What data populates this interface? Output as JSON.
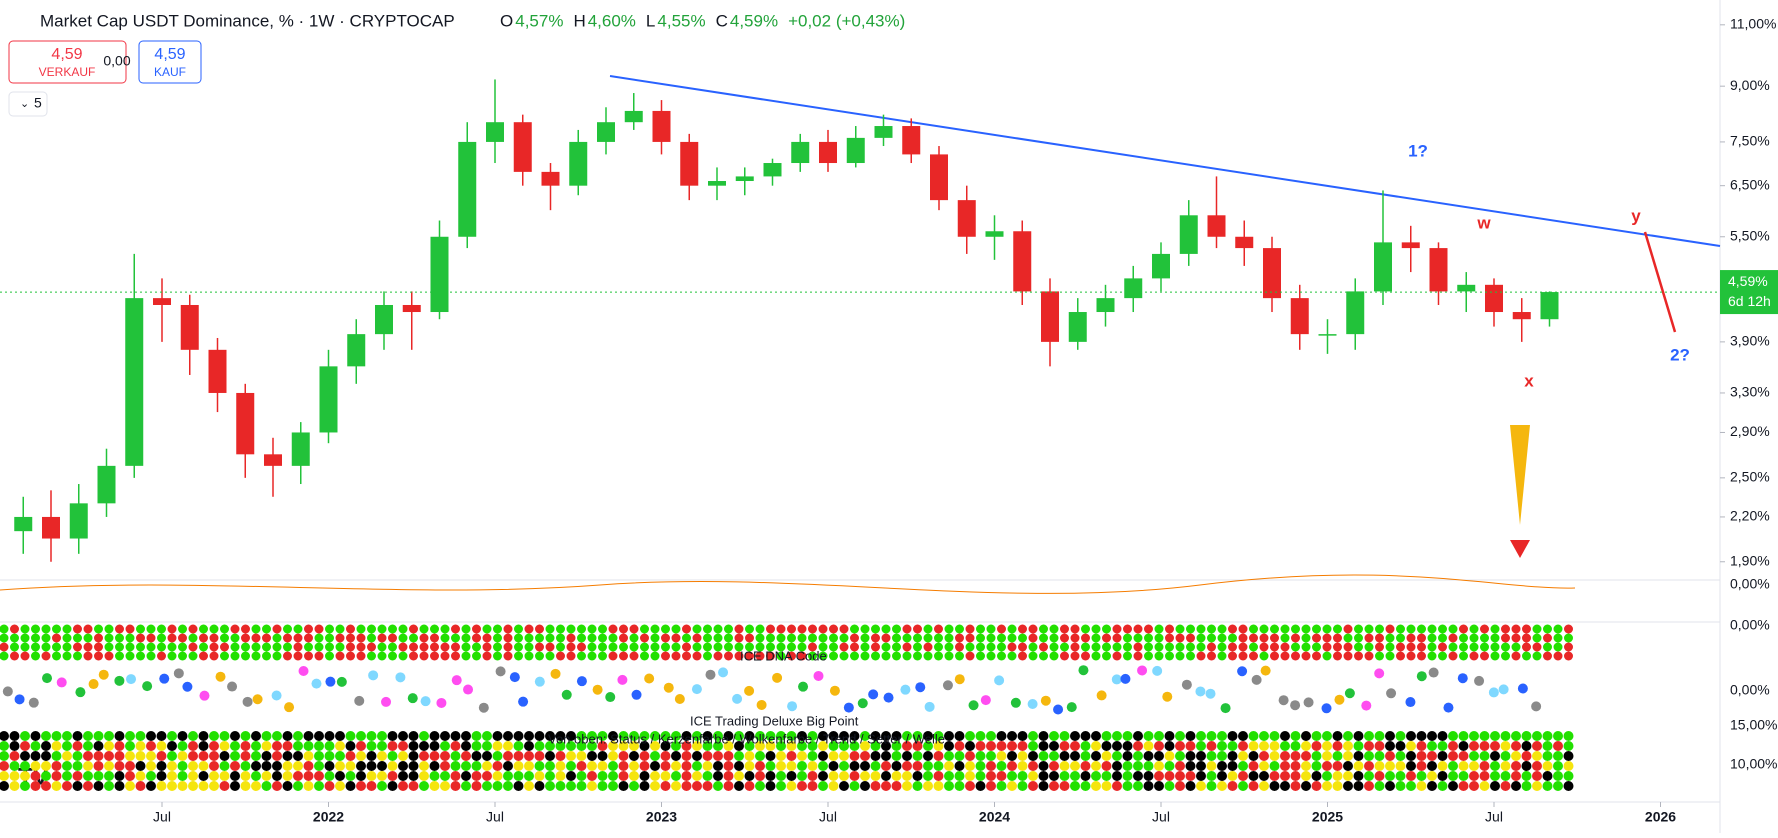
{
  "chart_data": {
    "type": "candlestick",
    "symbol": "Market Cap USDT Dominance, % · 1W · CRYPTOCAP",
    "ohlc_legend": [
      {
        "key": "O",
        "value": "4,57%"
      },
      {
        "key": "H",
        "value": "4,60%"
      },
      {
        "key": "L",
        "value": "4,55%"
      },
      {
        "key": "C",
        "value": "4,59%"
      }
    ],
    "change": "+0,02 (+0,43%)",
    "sell": {
      "price": "4,59",
      "label": "VERKAUF"
    },
    "spread": "0,00",
    "buy": {
      "price": "4,59",
      "label": "KAUF"
    },
    "indicator_count": "5",
    "x": [
      "2021-02",
      "2021-03",
      "2021-04",
      "2021-05",
      "2021-06",
      "2021-07",
      "2021-08",
      "2021-09",
      "2021-10",
      "2021-11",
      "2021-12",
      "2022-01",
      "2022-02",
      "2022-03",
      "2022-04",
      "2022-05",
      "2022-06",
      "2022-07",
      "2022-08",
      "2022-09",
      "2022-10",
      "2022-11",
      "2022-12",
      "2023-01",
      "2023-02",
      "2023-03",
      "2023-04",
      "2023-05",
      "2023-06",
      "2023-07",
      "2023-08",
      "2023-09",
      "2023-10",
      "2023-11",
      "2023-12",
      "2024-01",
      "2024-02",
      "2024-03",
      "2024-04",
      "2024-05",
      "2024-06",
      "2024-07",
      "2024-08",
      "2024-09",
      "2024-10",
      "2024-11",
      "2024-12",
      "2025-01",
      "2025-02",
      "2025-03",
      "2025-04",
      "2025-05",
      "2025-06",
      "2025-07",
      "2025-08",
      "2025-09"
    ],
    "open": [
      2.1,
      2.2,
      2.05,
      2.3,
      2.6,
      4.5,
      4.4,
      3.8,
      3.3,
      2.7,
      2.6,
      2.9,
      3.6,
      4.0,
      4.4,
      4.3,
      5.5,
      7.5,
      8.0,
      6.8,
      6.5,
      7.5,
      8.0,
      8.3,
      7.5,
      6.5,
      6.6,
      6.7,
      7.0,
      7.5,
      7.0,
      7.6,
      7.9,
      7.2,
      6.2,
      5.5,
      5.6,
      4.6,
      3.9,
      4.3,
      4.5,
      4.8,
      5.2,
      5.9,
      5.5,
      5.3,
      4.5,
      4.0,
      4.0,
      4.6,
      5.4,
      5.3,
      4.6,
      4.7,
      4.3,
      4.2
    ],
    "high": [
      2.35,
      2.4,
      2.45,
      2.75,
      5.2,
      4.8,
      4.55,
      3.95,
      3.4,
      2.85,
      3.0,
      3.8,
      4.2,
      4.6,
      4.6,
      5.8,
      8.0,
      9.2,
      8.2,
      7.0,
      7.8,
      8.4,
      8.8,
      8.6,
      7.7,
      6.9,
      6.9,
      7.1,
      7.7,
      7.8,
      7.9,
      8.2,
      8.1,
      7.4,
      6.5,
      5.9,
      5.8,
      4.8,
      4.5,
      4.7,
      5.0,
      5.4,
      6.2,
      6.7,
      5.8,
      5.5,
      4.7,
      4.2,
      4.8,
      6.4,
      5.7,
      5.4,
      4.9,
      4.8,
      4.5,
      4.6
    ],
    "low": [
      1.95,
      1.9,
      1.95,
      2.2,
      2.5,
      3.9,
      3.5,
      3.1,
      2.5,
      2.35,
      2.45,
      2.8,
      3.4,
      3.8,
      3.8,
      4.2,
      5.3,
      7.0,
      6.5,
      6.0,
      6.3,
      7.2,
      7.8,
      7.2,
      6.2,
      6.2,
      6.3,
      6.5,
      6.8,
      6.8,
      6.9,
      7.4,
      7.0,
      6.0,
      5.2,
      5.1,
      4.4,
      3.6,
      3.8,
      4.1,
      4.3,
      4.6,
      5.0,
      5.3,
      5.0,
      4.3,
      3.8,
      3.75,
      3.8,
      4.4,
      4.9,
      4.4,
      4.3,
      4.1,
      3.9,
      4.1
    ],
    "close": [
      2.2,
      2.05,
      2.3,
      2.6,
      4.5,
      4.4,
      3.8,
      3.3,
      2.7,
      2.6,
      2.9,
      3.6,
      4.0,
      4.4,
      4.3,
      5.5,
      7.5,
      8.0,
      6.8,
      6.5,
      7.5,
      8.0,
      8.3,
      7.5,
      6.5,
      6.6,
      6.7,
      7.0,
      7.5,
      7.0,
      7.6,
      7.9,
      7.2,
      6.2,
      5.5,
      5.6,
      4.6,
      3.9,
      4.3,
      4.5,
      4.8,
      5.2,
      5.9,
      5.5,
      5.3,
      4.5,
      4.0,
      4.0,
      4.6,
      5.4,
      5.3,
      4.6,
      4.7,
      4.3,
      4.2,
      4.59
    ],
    "up_color": "#22c23a",
    "down_color": "#e82727",
    "log_scale": true,
    "ylim": [
      1.79,
      11.93
    ],
    "yticks": [
      {
        "value": 11,
        "label": "11,00%"
      },
      {
        "value": 9,
        "label": "9,00%"
      },
      {
        "value": 7.5,
        "label": "7,50%"
      },
      {
        "value": 6.5,
        "label": "6,50%"
      },
      {
        "value": 5.5,
        "label": "5,50%"
      },
      {
        "value": 3.9,
        "label": "3,90%"
      },
      {
        "value": 3.3,
        "label": "3,30%"
      },
      {
        "value": 2.9,
        "label": "2,90%"
      },
      {
        "value": 2.5,
        "label": "2,50%"
      },
      {
        "value": 2.2,
        "label": "2,20%"
      },
      {
        "value": 1.9,
        "label": "1,90%"
      }
    ],
    "xticks": [
      {
        "value": "2021-07",
        "label": "Jul"
      },
      {
        "value": "2022-01",
        "label": "2022"
      },
      {
        "value": "2022-07",
        "label": "Jul"
      },
      {
        "value": "2023-01",
        "label": "2023"
      },
      {
        "value": "2023-07",
        "label": "Jul"
      },
      {
        "value": "2024-01",
        "label": "2024"
      },
      {
        "value": "2024-07",
        "label": "Jul"
      },
      {
        "value": "2025-01",
        "label": "2025"
      },
      {
        "value": "2025-07",
        "label": "Jul"
      },
      {
        "value": "2026-01",
        "label": "2026"
      }
    ],
    "last_price": {
      "value": 4.59,
      "label": "4,59%"
    },
    "countdown": "6d 12h",
    "annotations": [
      "1?",
      "w",
      "y",
      "2?",
      "x"
    ],
    "panels": [
      {
        "scale_label": "0,00%"
      },
      {
        "scale_label": "0,00%"
      },
      {
        "title": "ICE DNA Code",
        "scale_label": "0,00%"
      },
      {
        "title": "ICE Trading Deluxe Big Point",
        "subtitle": "Von oben: Status / Kerzenfarbe / Wolkenfarbe / Trend / Setter / Welle",
        "scale_labels": [
          "15,00%",
          "10,00%"
        ]
      }
    ]
  }
}
